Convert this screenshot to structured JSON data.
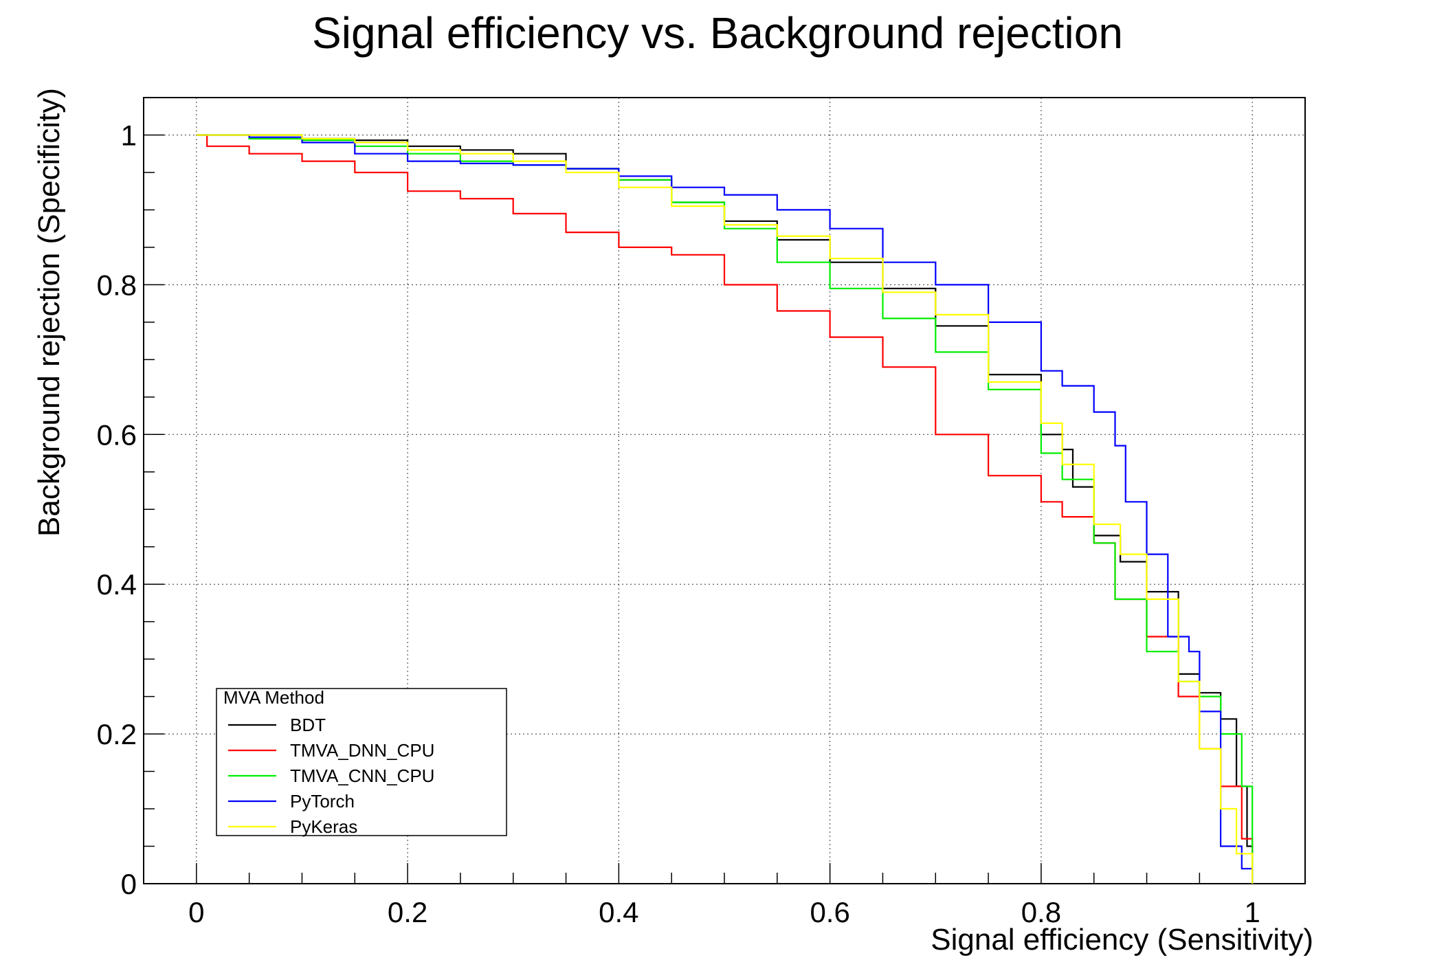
{
  "chart_data": {
    "type": "line",
    "title": "Signal efficiency vs. Background rejection",
    "xlabel": "Signal efficiency (Sensitivity)",
    "ylabel": "Background rejection (Specificity)",
    "xlim": [
      -0.05,
      1.05
    ],
    "ylim": [
      0,
      1.05
    ],
    "x_ticks": [
      0,
      0.2,
      0.4,
      0.6,
      0.8,
      1
    ],
    "x_tick_labels": [
      "0",
      "0.2",
      "0.4",
      "0.6",
      "0.8",
      "1"
    ],
    "y_ticks": [
      0,
      0.2,
      0.4,
      0.6,
      0.8,
      1
    ],
    "y_tick_labels": [
      "0",
      "0.2",
      "0.4",
      "0.6",
      "0.8",
      "1"
    ],
    "grid": true,
    "legend": {
      "title": "MVA Method",
      "position": "bottom-left"
    },
    "series": [
      {
        "name": "BDT",
        "color": "#000000",
        "points": [
          [
            0,
            1
          ],
          [
            0.05,
            1
          ],
          [
            0.1,
            0.995
          ],
          [
            0.15,
            0.993
          ],
          [
            0.2,
            0.985
          ],
          [
            0.25,
            0.98
          ],
          [
            0.3,
            0.975
          ],
          [
            0.35,
            0.955
          ],
          [
            0.4,
            0.94
          ],
          [
            0.45,
            0.91
          ],
          [
            0.5,
            0.885
          ],
          [
            0.55,
            0.86
          ],
          [
            0.6,
            0.83
          ],
          [
            0.65,
            0.795
          ],
          [
            0.7,
            0.745
          ],
          [
            0.75,
            0.68
          ],
          [
            0.8,
            0.6
          ],
          [
            0.82,
            0.58
          ],
          [
            0.83,
            0.53
          ],
          [
            0.85,
            0.465
          ],
          [
            0.875,
            0.43
          ],
          [
            0.9,
            0.39
          ],
          [
            0.93,
            0.28
          ],
          [
            0.95,
            0.255
          ],
          [
            0.97,
            0.22
          ],
          [
            0.985,
            0.13
          ],
          [
            0.995,
            0.05
          ],
          [
            1,
            0
          ]
        ]
      },
      {
        "name": "TMVA_DNN_CPU",
        "color": "#ff0000",
        "points": [
          [
            0,
            1
          ],
          [
            0.01,
            0.985
          ],
          [
            0.05,
            0.975
          ],
          [
            0.1,
            0.965
          ],
          [
            0.15,
            0.95
          ],
          [
            0.2,
            0.925
          ],
          [
            0.25,
            0.915
          ],
          [
            0.3,
            0.895
          ],
          [
            0.35,
            0.87
          ],
          [
            0.4,
            0.85
          ],
          [
            0.45,
            0.84
          ],
          [
            0.5,
            0.8
          ],
          [
            0.55,
            0.765
          ],
          [
            0.6,
            0.73
          ],
          [
            0.65,
            0.69
          ],
          [
            0.7,
            0.6
          ],
          [
            0.75,
            0.545
          ],
          [
            0.8,
            0.51
          ],
          [
            0.82,
            0.49
          ],
          [
            0.85,
            0.455
          ],
          [
            0.87,
            0.38
          ],
          [
            0.9,
            0.33
          ],
          [
            0.93,
            0.25
          ],
          [
            0.95,
            0.18
          ],
          [
            0.97,
            0.13
          ],
          [
            0.99,
            0.06
          ],
          [
            1,
            0.04
          ]
        ]
      },
      {
        "name": "TMVA_CNN_CPU",
        "color": "#00ee00",
        "points": [
          [
            0,
            1
          ],
          [
            0.05,
            0.995
          ],
          [
            0.1,
            0.993
          ],
          [
            0.15,
            0.985
          ],
          [
            0.2,
            0.975
          ],
          [
            0.25,
            0.965
          ],
          [
            0.3,
            0.96
          ],
          [
            0.35,
            0.955
          ],
          [
            0.4,
            0.94
          ],
          [
            0.45,
            0.91
          ],
          [
            0.5,
            0.875
          ],
          [
            0.55,
            0.83
          ],
          [
            0.6,
            0.795
          ],
          [
            0.65,
            0.755
          ],
          [
            0.7,
            0.71
          ],
          [
            0.75,
            0.66
          ],
          [
            0.8,
            0.575
          ],
          [
            0.82,
            0.54
          ],
          [
            0.85,
            0.455
          ],
          [
            0.87,
            0.38
          ],
          [
            0.9,
            0.31
          ],
          [
            0.93,
            0.27
          ],
          [
            0.95,
            0.25
          ],
          [
            0.97,
            0.2
          ],
          [
            0.99,
            0.13
          ],
          [
            1,
            0
          ]
        ]
      },
      {
        "name": "PyTorch",
        "color": "#0000ff",
        "points": [
          [
            0,
            1
          ],
          [
            0.05,
            0.997
          ],
          [
            0.1,
            0.99
          ],
          [
            0.15,
            0.975
          ],
          [
            0.2,
            0.965
          ],
          [
            0.25,
            0.962
          ],
          [
            0.3,
            0.96
          ],
          [
            0.35,
            0.955
          ],
          [
            0.4,
            0.945
          ],
          [
            0.45,
            0.93
          ],
          [
            0.5,
            0.92
          ],
          [
            0.55,
            0.9
          ],
          [
            0.6,
            0.875
          ],
          [
            0.65,
            0.83
          ],
          [
            0.7,
            0.8
          ],
          [
            0.75,
            0.75
          ],
          [
            0.8,
            0.685
          ],
          [
            0.82,
            0.665
          ],
          [
            0.85,
            0.63
          ],
          [
            0.87,
            0.585
          ],
          [
            0.88,
            0.51
          ],
          [
            0.9,
            0.44
          ],
          [
            0.92,
            0.33
          ],
          [
            0.94,
            0.31
          ],
          [
            0.95,
            0.23
          ],
          [
            0.97,
            0.05
          ],
          [
            0.99,
            0.02
          ],
          [
            1,
            0
          ]
        ]
      },
      {
        "name": "PyKeras",
        "color": "#ffff00",
        "points": [
          [
            0,
            1
          ],
          [
            0.05,
            1
          ],
          [
            0.1,
            0.995
          ],
          [
            0.15,
            0.99
          ],
          [
            0.2,
            0.98
          ],
          [
            0.25,
            0.975
          ],
          [
            0.3,
            0.965
          ],
          [
            0.35,
            0.95
          ],
          [
            0.4,
            0.93
          ],
          [
            0.45,
            0.905
          ],
          [
            0.5,
            0.88
          ],
          [
            0.55,
            0.865
          ],
          [
            0.6,
            0.835
          ],
          [
            0.63,
            0.835
          ],
          [
            0.65,
            0.79
          ],
          [
            0.7,
            0.76
          ],
          [
            0.75,
            0.67
          ],
          [
            0.8,
            0.615
          ],
          [
            0.82,
            0.56
          ],
          [
            0.85,
            0.48
          ],
          [
            0.875,
            0.44
          ],
          [
            0.9,
            0.38
          ],
          [
            0.93,
            0.27
          ],
          [
            0.95,
            0.18
          ],
          [
            0.97,
            0.1
          ],
          [
            0.985,
            0.04
          ],
          [
            1,
            0
          ]
        ]
      }
    ]
  }
}
